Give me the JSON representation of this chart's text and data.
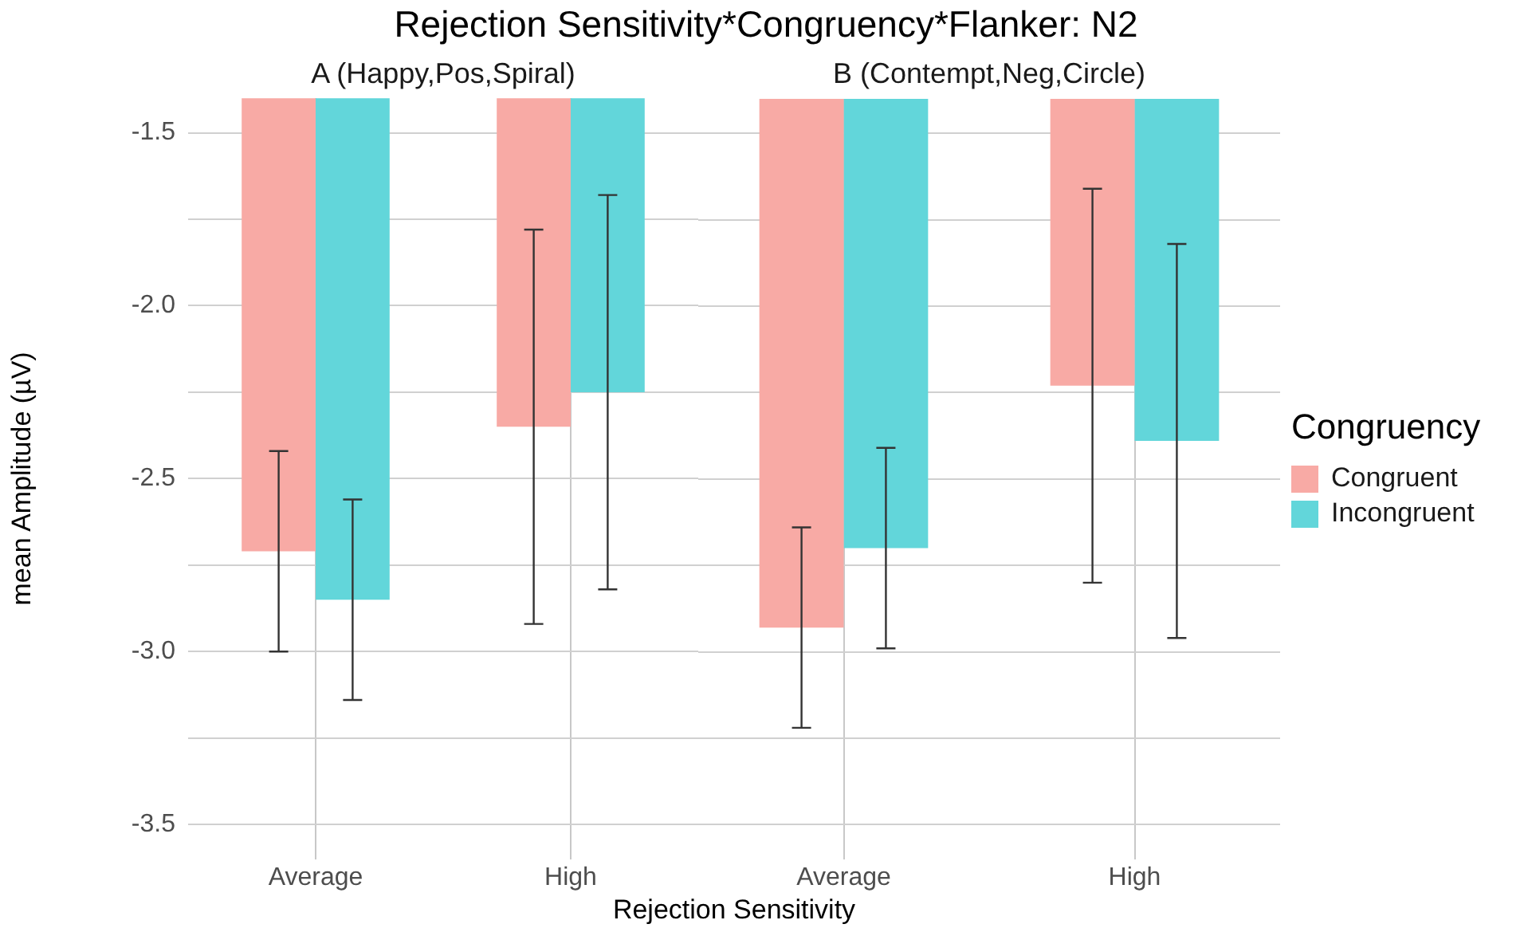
{
  "chart_data": [
    {
      "type": "bar",
      "title": "Rejection Sensitivity*Congruency*Flanker: N2",
      "subtitle": "A (Happy,Pos,Spiral)",
      "xlabel": "Rejection Sensitivity",
      "ylabel": "mean Amplitude (µV)",
      "legend_title": "Congruency",
      "legend": "right",
      "categories": [
        "Average",
        "High"
      ],
      "series": [
        {
          "name": "Congruent",
          "color": "#f8aaa5",
          "values": [
            -2.71,
            -2.35
          ],
          "errors": [
            0.29,
            0.57
          ]
        },
        {
          "name": "Incongruent",
          "color": "#62d6da",
          "values": [
            -2.85,
            -2.25
          ],
          "errors": [
            0.29,
            0.57
          ]
        }
      ],
      "ylim": [
        -3.6,
        -1.4
      ],
      "yticks": [
        {
          "value": -3.5,
          "label": "-3.5"
        },
        {
          "value": -3.25,
          "label": null
        },
        {
          "value": -3.0,
          "label": "-3.0"
        },
        {
          "value": -2.75,
          "label": null
        },
        {
          "value": -2.5,
          "label": "-2.5"
        },
        {
          "value": -2.25,
          "label": null
        },
        {
          "value": -2.0,
          "label": "-2.0"
        },
        {
          "value": -1.75,
          "label": null
        },
        {
          "value": -1.5,
          "label": "-1.5"
        }
      ],
      "grid": true
    },
    {
      "type": "bar",
      "subtitle": "B (Contempt,Neg,Circle)",
      "tick_labels": "x",
      "categories": [
        "Average",
        "High"
      ],
      "series": [
        {
          "color": "#f8aaa5",
          "values": [
            -2.93,
            -2.23
          ],
          "errors": [
            0.29,
            0.57
          ]
        },
        {
          "color": "#62d6da",
          "values": [
            -2.7,
            -2.39
          ],
          "errors": [
            0.29,
            0.57
          ]
        }
      ],
      "ylim": [
        -3.6,
        -1.4
      ],
      "yticks": [
        {
          "value": -3.5,
          "label": null
        },
        {
          "value": -3.25,
          "label": null
        },
        {
          "value": -3.0,
          "label": null
        },
        {
          "value": -2.75,
          "label": null
        },
        {
          "value": -2.5,
          "label": null
        },
        {
          "value": -2.25,
          "label": null
        },
        {
          "value": -2.0,
          "label": null
        },
        {
          "value": -1.75,
          "label": null
        },
        {
          "value": -1.5,
          "label": null
        }
      ],
      "grid": true
    }
  ]
}
